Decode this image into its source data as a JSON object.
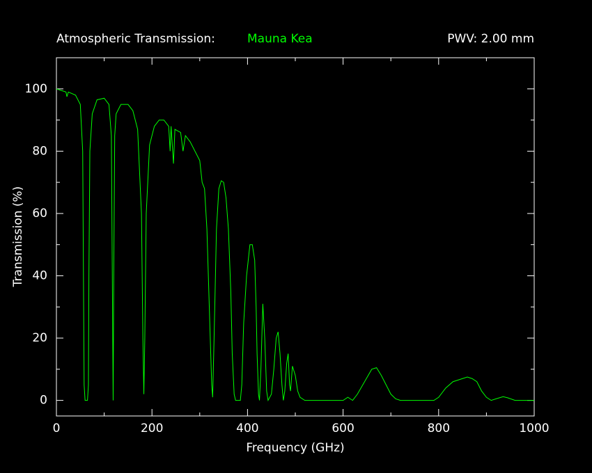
{
  "chart_data": {
    "type": "line",
    "title": "Atmospheric Transmission:",
    "site": "Mauna Kea",
    "pwv_label": "PWV: 2.00 mm",
    "xlabel": "Frequency (GHz)",
    "ylabel": "Transmission (%)",
    "color": "#00ff00",
    "xlim": [
      0,
      1000
    ],
    "ylim": [
      -5,
      110
    ],
    "xticks": [
      0,
      200,
      400,
      600,
      800,
      1000
    ],
    "yticks": [
      0,
      20,
      40,
      60,
      80,
      100
    ],
    "x_minor_ticks": [
      100,
      300,
      500,
      700,
      900
    ],
    "y_minor_ticks": [
      10,
      30,
      50,
      70,
      90
    ],
    "x": [
      0,
      10,
      20,
      22,
      25,
      40,
      50,
      55,
      57,
      58,
      60,
      65,
      67,
      68,
      70,
      75,
      85,
      100,
      110,
      115,
      117,
      118.75,
      120,
      122,
      125,
      135,
      150,
      160,
      170,
      178,
      181,
      183,
      185,
      188,
      195,
      205,
      215,
      225,
      235,
      238,
      240,
      245,
      248,
      260,
      265,
      270,
      280,
      290,
      300,
      305,
      310,
      315,
      320,
      325,
      327,
      330,
      335,
      340,
      345,
      350,
      355,
      360,
      365,
      368,
      372,
      375,
      385,
      388,
      392,
      398,
      405,
      410,
      415,
      418,
      420,
      423,
      425,
      428,
      432,
      436,
      440,
      443,
      450,
      455,
      460,
      464,
      468,
      472,
      475,
      478,
      482,
      485,
      488,
      490,
      494,
      500,
      505,
      510,
      520,
      600,
      610,
      615,
      620,
      630,
      645,
      660,
      670,
      680,
      690,
      700,
      710,
      720,
      790,
      800,
      815,
      830,
      840,
      850,
      860,
      870,
      880,
      890,
      900,
      910,
      920,
      935,
      945,
      960,
      1000
    ],
    "values": [
      100,
      99.5,
      99,
      97.5,
      99,
      98,
      95,
      80,
      30,
      5,
      0,
      0,
      5,
      40,
      80,
      92,
      96.5,
      97,
      95,
      85,
      40,
      0,
      40,
      85,
      92,
      95,
      95,
      93,
      87,
      60,
      20,
      2,
      20,
      60,
      82,
      88,
      90,
      90,
      88,
      80,
      88,
      76,
      87,
      86,
      80,
      85,
      83,
      80,
      77,
      70,
      68,
      55,
      30,
      5,
      1,
      20,
      55,
      68,
      70.5,
      70,
      65,
      55,
      35,
      15,
      2,
      0,
      0,
      5,
      25,
      40,
      50,
      50,
      45,
      30,
      15,
      2,
      0,
      10,
      31,
      20,
      3,
      0,
      2,
      10,
      20,
      22,
      15,
      5,
      0,
      3,
      12,
      15,
      5,
      3,
      11,
      8,
      3,
      1,
      0,
      0,
      1,
      0.5,
      0,
      2,
      6,
      10,
      10.5,
      8,
      5,
      2,
      0.5,
      0,
      0,
      1,
      4,
      6,
      6.5,
      7,
      7.5,
      7,
      6,
      3,
      1,
      0,
      0.5,
      1.2,
      0.8,
      0,
      0
    ]
  }
}
